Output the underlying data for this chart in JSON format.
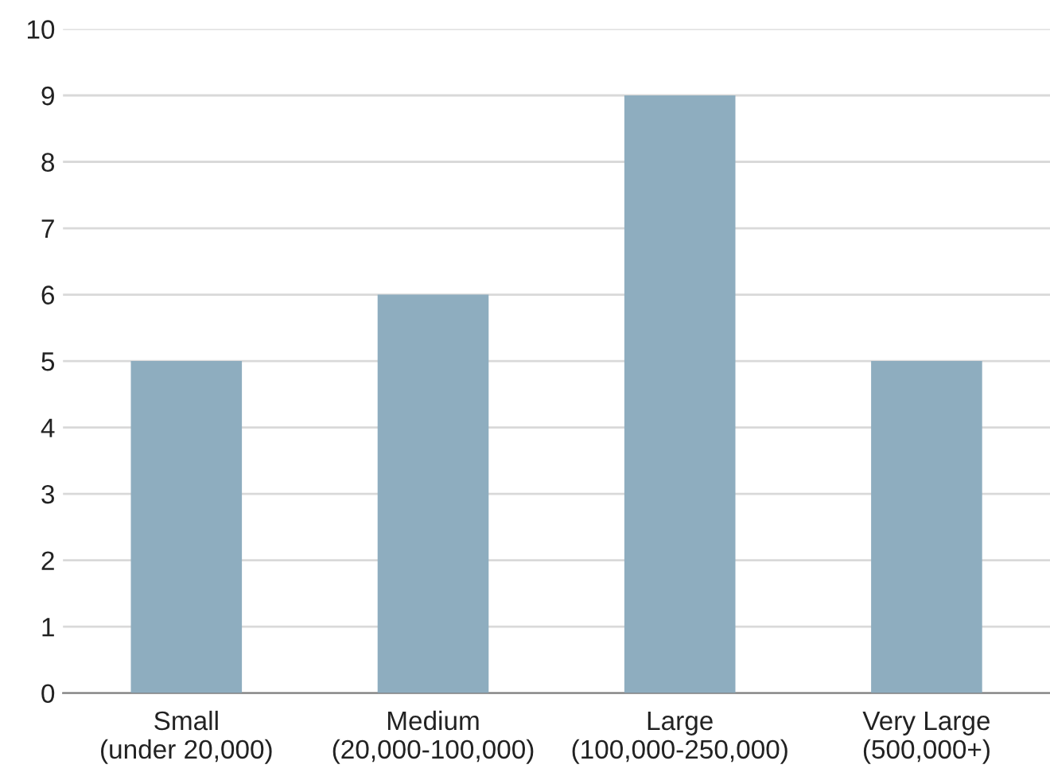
{
  "chart_data": {
    "type": "bar",
    "categories": [
      "Small\n(under 20,000)",
      "Medium\n(20,000-100,000)",
      "Large\n(100,000-250,000)",
      "Very Large\n(500,000+)"
    ],
    "values": [
      5,
      6,
      9,
      5
    ],
    "color": "#8eadbf",
    "ylim": [
      0,
      10
    ],
    "yticks": [
      0,
      1,
      2,
      3,
      4,
      5,
      6,
      7,
      8,
      9,
      10
    ],
    "grid": "y"
  }
}
